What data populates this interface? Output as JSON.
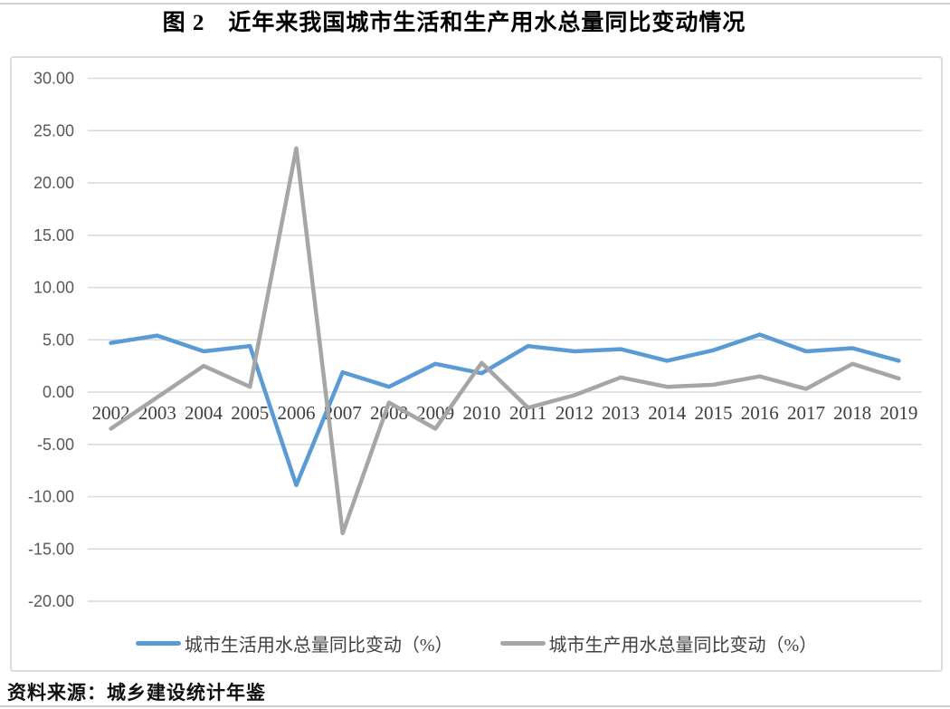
{
  "page": {
    "title": "图 2　近年来我国城市生活和生产用水总量同比变动情况",
    "source_note": "资料来源：城乡建设统计年鉴"
  },
  "colors": {
    "domestic_line": "#5B9BD5",
    "production_line": "#A6A6A6",
    "gridline": "#D9D9D9",
    "y_axis_label": "#595959",
    "x_axis_label": "#404040",
    "chart_border": "#DCDCDC"
  },
  "chart_data": {
    "type": "line",
    "title": "图 2　近年来我国城市生活和生产用水总量同比变动情况",
    "categories": [
      "2002",
      "2003",
      "2004",
      "2005",
      "2006",
      "2007",
      "2008",
      "2009",
      "2010",
      "2011",
      "2012",
      "2013",
      "2014",
      "2015",
      "2016",
      "2017",
      "2018",
      "2019"
    ],
    "series": [
      {
        "name": "城市生活用水总量同比变动（%）",
        "color": "#5B9BD5",
        "values": [
          4.7,
          5.4,
          3.9,
          4.4,
          -8.9,
          1.9,
          0.5,
          2.7,
          1.8,
          4.4,
          3.9,
          4.1,
          3.0,
          4.0,
          5.5,
          3.9,
          4.2,
          3.0
        ]
      },
      {
        "name": "城市生产用水总量同比变动（%）",
        "color": "#A6A6A6",
        "values": [
          -3.5,
          -0.5,
          2.5,
          0.5,
          23.3,
          -13.5,
          -1.0,
          -3.5,
          2.8,
          -1.5,
          -0.3,
          1.4,
          0.5,
          0.7,
          1.5,
          0.3,
          2.7,
          1.3
        ]
      }
    ],
    "ylim": [
      -20,
      30
    ],
    "ytick_step": 5,
    "yticks": [
      {
        "value": 30,
        "label": "30.00"
      },
      {
        "value": 25,
        "label": "25.00"
      },
      {
        "value": 20,
        "label": "20.00"
      },
      {
        "value": 15,
        "label": "15.00"
      },
      {
        "value": 10,
        "label": "10.00"
      },
      {
        "value": 5,
        "label": "5.00"
      },
      {
        "value": 0,
        "label": "0.00"
      },
      {
        "value": -5,
        "label": "-5.00"
      },
      {
        "value": -10,
        "label": "-10.00"
      },
      {
        "value": -15,
        "label": "-15.00"
      },
      {
        "value": -20,
        "label": "-20.00"
      }
    ],
    "grid": true,
    "legend_position": "bottom"
  }
}
